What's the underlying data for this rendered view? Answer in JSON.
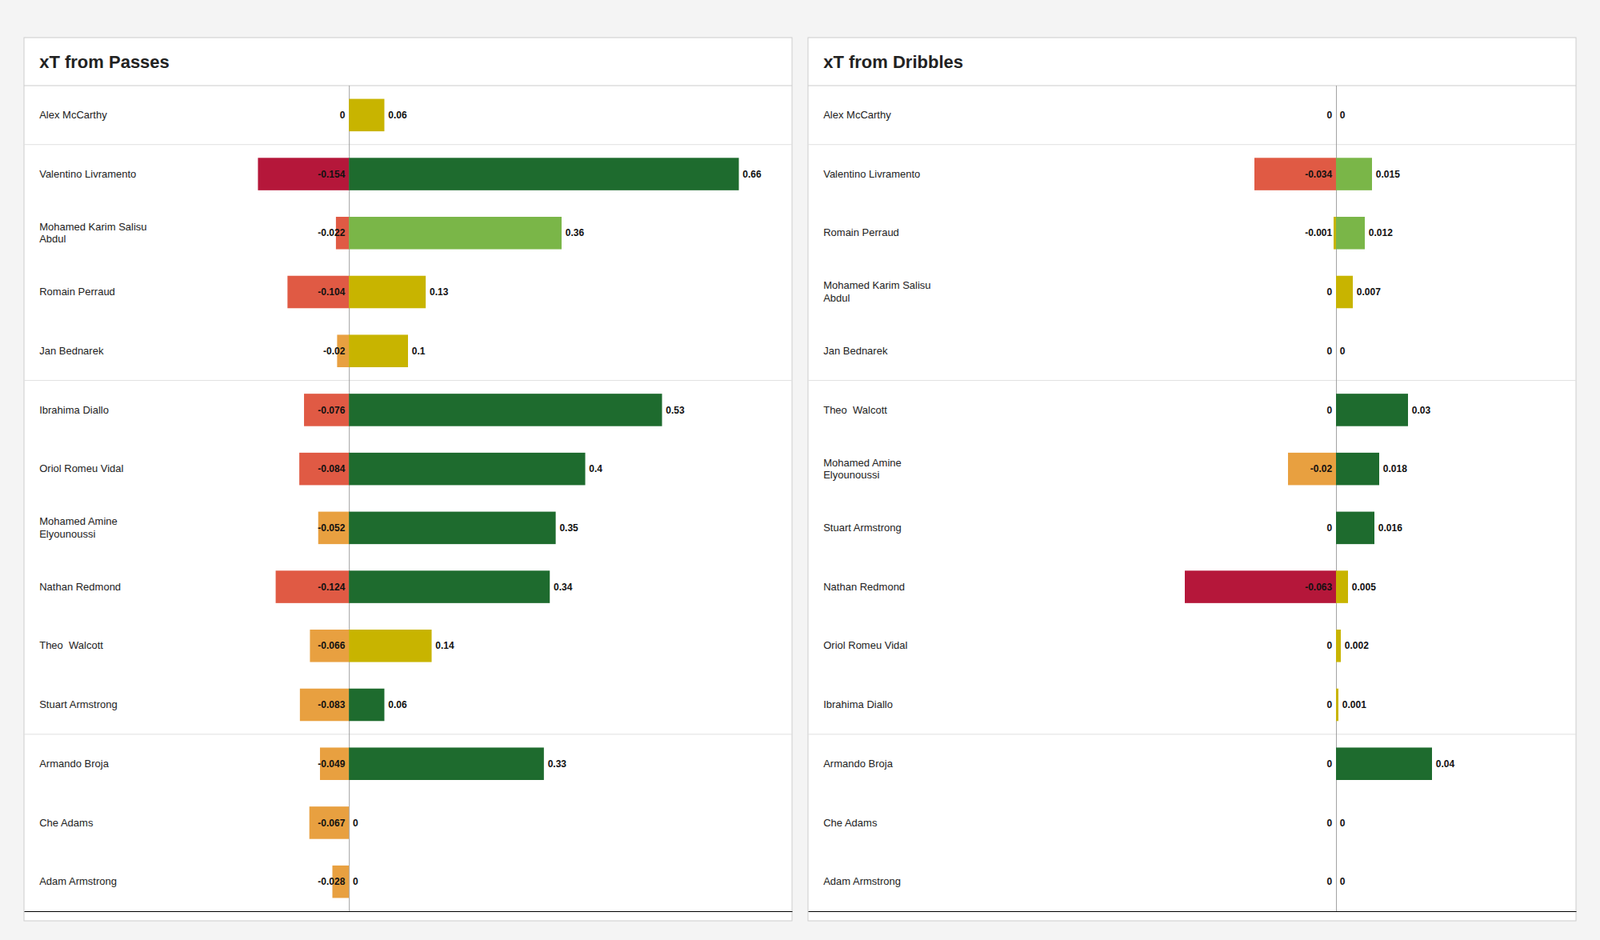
{
  "chart_data": [
    {
      "type": "bar",
      "orientation": "horizontal",
      "title": "xT from Passes",
      "categories": [
        "Alex McCarthy",
        "Valentino Livramento",
        "Mohamed Karim Salisu\nAbdul",
        "Romain Perraud",
        "Jan Bednarek",
        "Ibrahima Diallo",
        "Oriol Romeu Vidal",
        "Mohamed Amine\nElyounoussi",
        "Nathan Redmond",
        "Theo  Walcott",
        "Stuart Armstrong",
        "Armando Broja",
        "Che Adams",
        "Adam Armstrong"
      ],
      "series": [
        {
          "values": [
            0,
            -0.154,
            -0.022,
            -0.104,
            -0.02,
            -0.076,
            -0.084,
            -0.052,
            -0.124,
            -0.066,
            -0.083,
            -0.049,
            -0.067,
            -0.028
          ],
          "colors": [
            "#c0392b",
            "#b5173a",
            "#e05a44",
            "#e05a44",
            "#e8a040",
            "#e05a44",
            "#e05a44",
            "#e8a040",
            "#e05a44",
            "#e8a040",
            "#e8a040",
            "#e8a040",
            "#e8a040",
            "#e8a040"
          ]
        },
        {
          "values": [
            0.06,
            0.66,
            0.36,
            0.13,
            0.1,
            0.53,
            0.4,
            0.35,
            0.34,
            0.14,
            0.06,
            0.33,
            0,
            0
          ],
          "colors": [
            "#c8b400",
            "#1e6b2e",
            "#7ab648",
            "#c8b400",
            "#c8b400",
            "#1e6b2e",
            "#1e6b2e",
            "#1e6b2e",
            "#1e6b2e",
            "#c8b400",
            "#1e6b2e",
            "#1e6b2e",
            "#c8b400",
            "#c8b400"
          ]
        }
      ],
      "xlim": [
        -0.55,
        0.75
      ],
      "xticks": [
        0
      ],
      "tick_labels": false,
      "data_labels": true
    },
    {
      "type": "bar",
      "orientation": "horizontal",
      "title": "xT from Dribbles",
      "categories": [
        "Alex McCarthy",
        "Valentino Livramento",
        "Romain Perraud",
        "Mohamed Karim Salisu\nAbdul",
        "Jan Bednarek",
        "Theo  Walcott",
        "Mohamed Amine\nElyounoussi",
        "Stuart Armstrong",
        "Nathan Redmond",
        "Oriol Romeu Vidal",
        "Ibrahima Diallo",
        "Armando Broja",
        "Che Adams",
        "Adam Armstrong"
      ],
      "series": [
        {
          "values": [
            0,
            -0.034,
            -0.001,
            0,
            0,
            0,
            -0.02,
            0,
            -0.063,
            0,
            0,
            0,
            0,
            0
          ],
          "colors": [
            "#c0392b",
            "#e05a44",
            "#c8b400",
            "#c0392b",
            "#c0392b",
            "#c0392b",
            "#e8a040",
            "#c0392b",
            "#b5173a",
            "#c0392b",
            "#c0392b",
            "#c0392b",
            "#c0392b",
            "#c0392b"
          ]
        },
        {
          "values": [
            0,
            0.015,
            0.012,
            0.007,
            0,
            0.03,
            0.018,
            0.016,
            0.005,
            0.002,
            0.001,
            0.04,
            0,
            0
          ],
          "colors": [
            "#c8b400",
            "#7ab648",
            "#7ab648",
            "#c8b400",
            "#c8b400",
            "#1e6b2e",
            "#1e6b2e",
            "#1e6b2e",
            "#c8b400",
            "#c8b400",
            "#c8b400",
            "#1e6b2e",
            "#c8b400",
            "#c8b400"
          ]
        }
      ],
      "xlim": [
        -0.22,
        0.1
      ],
      "xticks": [
        0
      ],
      "tick_labels": false,
      "data_labels": true
    }
  ]
}
